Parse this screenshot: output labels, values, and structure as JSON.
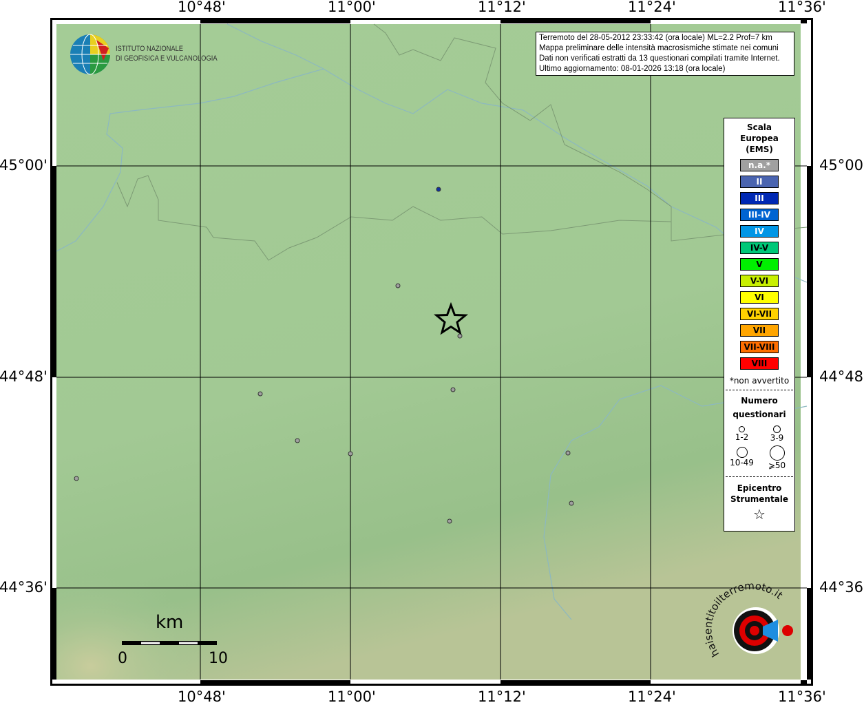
{
  "map": {
    "top_ticks": [
      "10°48'",
      "11°00'",
      "11°12'",
      "11°24'",
      "11°36'"
    ],
    "bottom_ticks": [
      "10°48'",
      "11°00'",
      "11°12'",
      "11°24'",
      "11°36'"
    ],
    "left_ticks": [
      "45°00'",
      "44°48'",
      "44°36'"
    ],
    "right_ticks": [
      "45°00'",
      "44°48'",
      "44°36'"
    ]
  },
  "logo": {
    "line1": "ISTITUTO NAZIONALE",
    "line2": "DI GEOFISICA E VULCANOLOGIA"
  },
  "info": {
    "line1": "Terremoto del 28-05-2012 23:33:42 (ora locale) ML=2.2 Prof=7 km",
    "line2": "Mappa preliminare delle intensità macrosismiche stimate nei comuni",
    "line3": "Dati non verificati estratti da 13 questionari compilati tramite Internet.",
    "line4": "Ultimo aggiornamento: 08-01-2026 13:18 (ora locale)"
  },
  "legend": {
    "title1": "Scala",
    "title2": "Europea",
    "title3": "(EMS)",
    "scale": [
      {
        "label": "n.a.*",
        "color": "#a0a0a0",
        "text": "#fff"
      },
      {
        "label": "II",
        "color": "#4a64b0",
        "text": "#fff"
      },
      {
        "label": "III",
        "color": "#0028b4",
        "text": "#fff"
      },
      {
        "label": "III-IV",
        "color": "#0064d2",
        "text": "#fff"
      },
      {
        "label": "IV",
        "color": "#0096e6",
        "text": "#fff"
      },
      {
        "label": "IV-V",
        "color": "#00c878",
        "text": "#000"
      },
      {
        "label": "V",
        "color": "#00f000",
        "text": "#000"
      },
      {
        "label": "V-VI",
        "color": "#c8f000",
        "text": "#000"
      },
      {
        "label": "VI",
        "color": "#ffff00",
        "text": "#000"
      },
      {
        "label": "VI-VII",
        "color": "#ffd200",
        "text": "#000"
      },
      {
        "label": "VII",
        "color": "#ffa500",
        "text": "#000"
      },
      {
        "label": "VII-VIII",
        "color": "#ff6e00",
        "text": "#000"
      },
      {
        "label": "VIII",
        "color": "#ff0000",
        "text": "#000"
      }
    ],
    "note": "*non avvertito",
    "count_title1": "Numero",
    "count_title2": "questionari",
    "counts": [
      "1-2",
      "3-9",
      "10-49",
      "⩾50"
    ],
    "epi_title1": "Epicentro",
    "epi_title2": "Strumentale"
  },
  "scalebar": {
    "unit": "km",
    "min": "0",
    "max": "10"
  },
  "hsit_logo": "haisentitoilterremoto.it www",
  "observations": [
    {
      "name": "obs",
      "intensity": "II"
    },
    {
      "name": "obs",
      "intensity": "n.a.*"
    }
  ]
}
